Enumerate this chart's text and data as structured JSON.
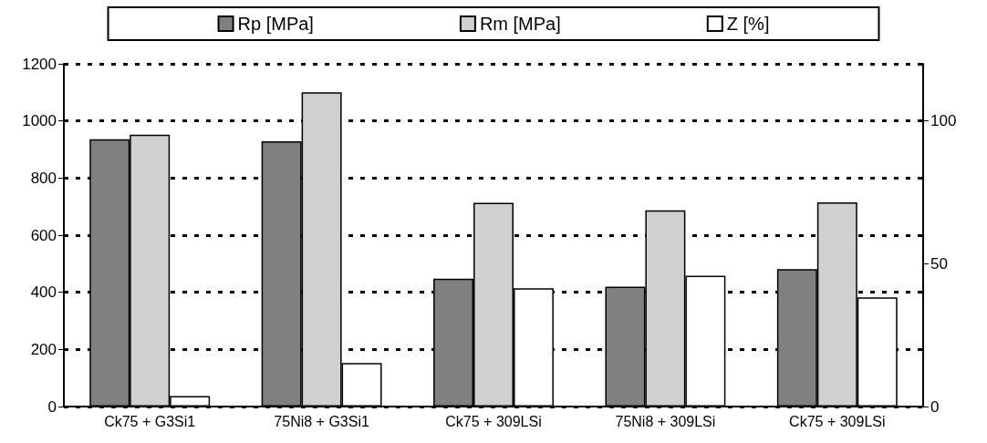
{
  "chart_data": {
    "type": "bar",
    "categories": [
      "Ck75 + G3Si1",
      "75Ni8 + G3Si1",
      "Ck75 + 309LSi",
      "75Ni8 + 309LSi",
      "Ck75 + 309LSi"
    ],
    "series": [
      {
        "name": "Rp [MPa]",
        "color": "#808080",
        "values": [
          936,
          929,
          448,
          420,
          481
        ]
      },
      {
        "name": "Rm [MPa]",
        "color": "#d0d0d0",
        "values": [
          952,
          1100,
          713,
          687,
          715
        ]
      },
      {
        "name": "Z [%]",
        "color": "#ffffff",
        "axis": "y2",
        "values": [
          3.7,
          15.2,
          41.4,
          45.8,
          38.2
        ]
      }
    ],
    "ylim": [
      0,
      1200
    ],
    "yticks": [
      0,
      200,
      400,
      600,
      800,
      1000,
      1200
    ],
    "y2lim": [
      0,
      120
    ],
    "y2ticks": [
      0,
      50,
      100
    ],
    "grid": "y",
    "legend": "top"
  }
}
